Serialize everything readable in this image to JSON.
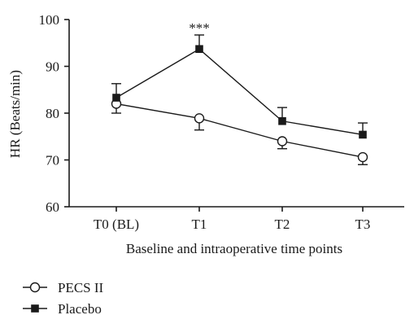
{
  "chart_data": {
    "type": "line",
    "xlabel": "Baseline and intraoperative time points",
    "ylabel": "HR (Beats/min)",
    "categories": [
      "T0 (BL)",
      "T1",
      "T2",
      "T3"
    ],
    "ylim": [
      60,
      100
    ],
    "yticks": [
      60,
      70,
      80,
      90,
      100
    ],
    "grid": false,
    "legend_position": "bottom-left",
    "series": [
      {
        "name": "PECS II",
        "marker": "open-circle",
        "values": [
          82.0,
          78.9,
          74.0,
          70.6
        ],
        "error": [
          2.0,
          2.5,
          1.6,
          1.6
        ]
      },
      {
        "name": "Placebo",
        "marker": "filled-square",
        "values": [
          83.3,
          93.7,
          78.3,
          75.4
        ],
        "error": [
          3.0,
          3.0,
          2.9,
          2.5
        ]
      }
    ],
    "annotations": [
      {
        "category": "T1",
        "text": "***"
      }
    ]
  },
  "colors": {
    "line": "#1a1a1a",
    "background": "#ffffff"
  }
}
